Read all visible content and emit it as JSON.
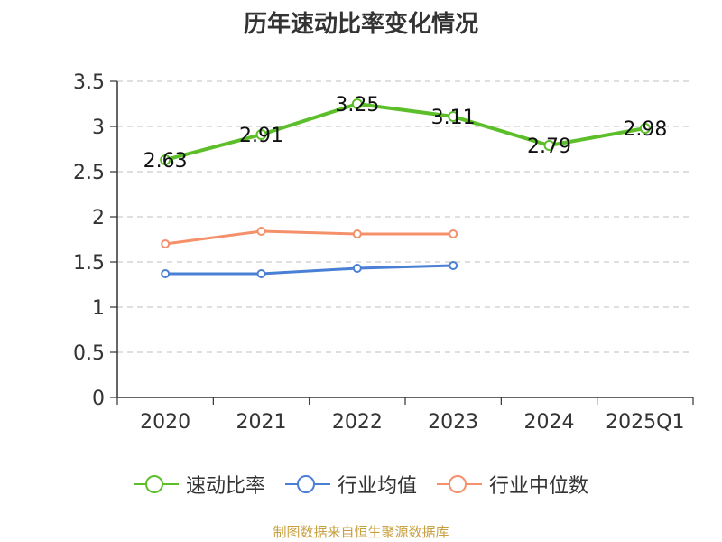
{
  "chart_data": {
    "type": "line",
    "title": "历年速动比率变化情况",
    "categories": [
      "2020",
      "2021",
      "2022",
      "2023",
      "2024",
      "2025Q1"
    ],
    "ylim": [
      0,
      3.5
    ],
    "yticks": [
      "0",
      "0.5",
      "1",
      "1.5",
      "2",
      "2.5",
      "3",
      "3.5"
    ],
    "grid": true,
    "legend_position": "bottom",
    "series": [
      {
        "name": "速动比率",
        "color": "#5cbf2a",
        "values": [
          2.63,
          2.91,
          3.25,
          3.11,
          2.79,
          2.98
        ],
        "labels": [
          "2.63",
          "2.91",
          "3.25",
          "3.11",
          "2.79",
          "2.98"
        ]
      },
      {
        "name": "行业均值",
        "color": "#4a7fd6",
        "values": [
          1.37,
          1.37,
          1.43,
          1.46,
          null,
          null
        ]
      },
      {
        "name": "行业中位数",
        "color": "#f4906a",
        "values": [
          1.7,
          1.84,
          1.81,
          1.81,
          null,
          null
        ]
      }
    ]
  },
  "source": "制图数据来自恒生聚源数据库"
}
